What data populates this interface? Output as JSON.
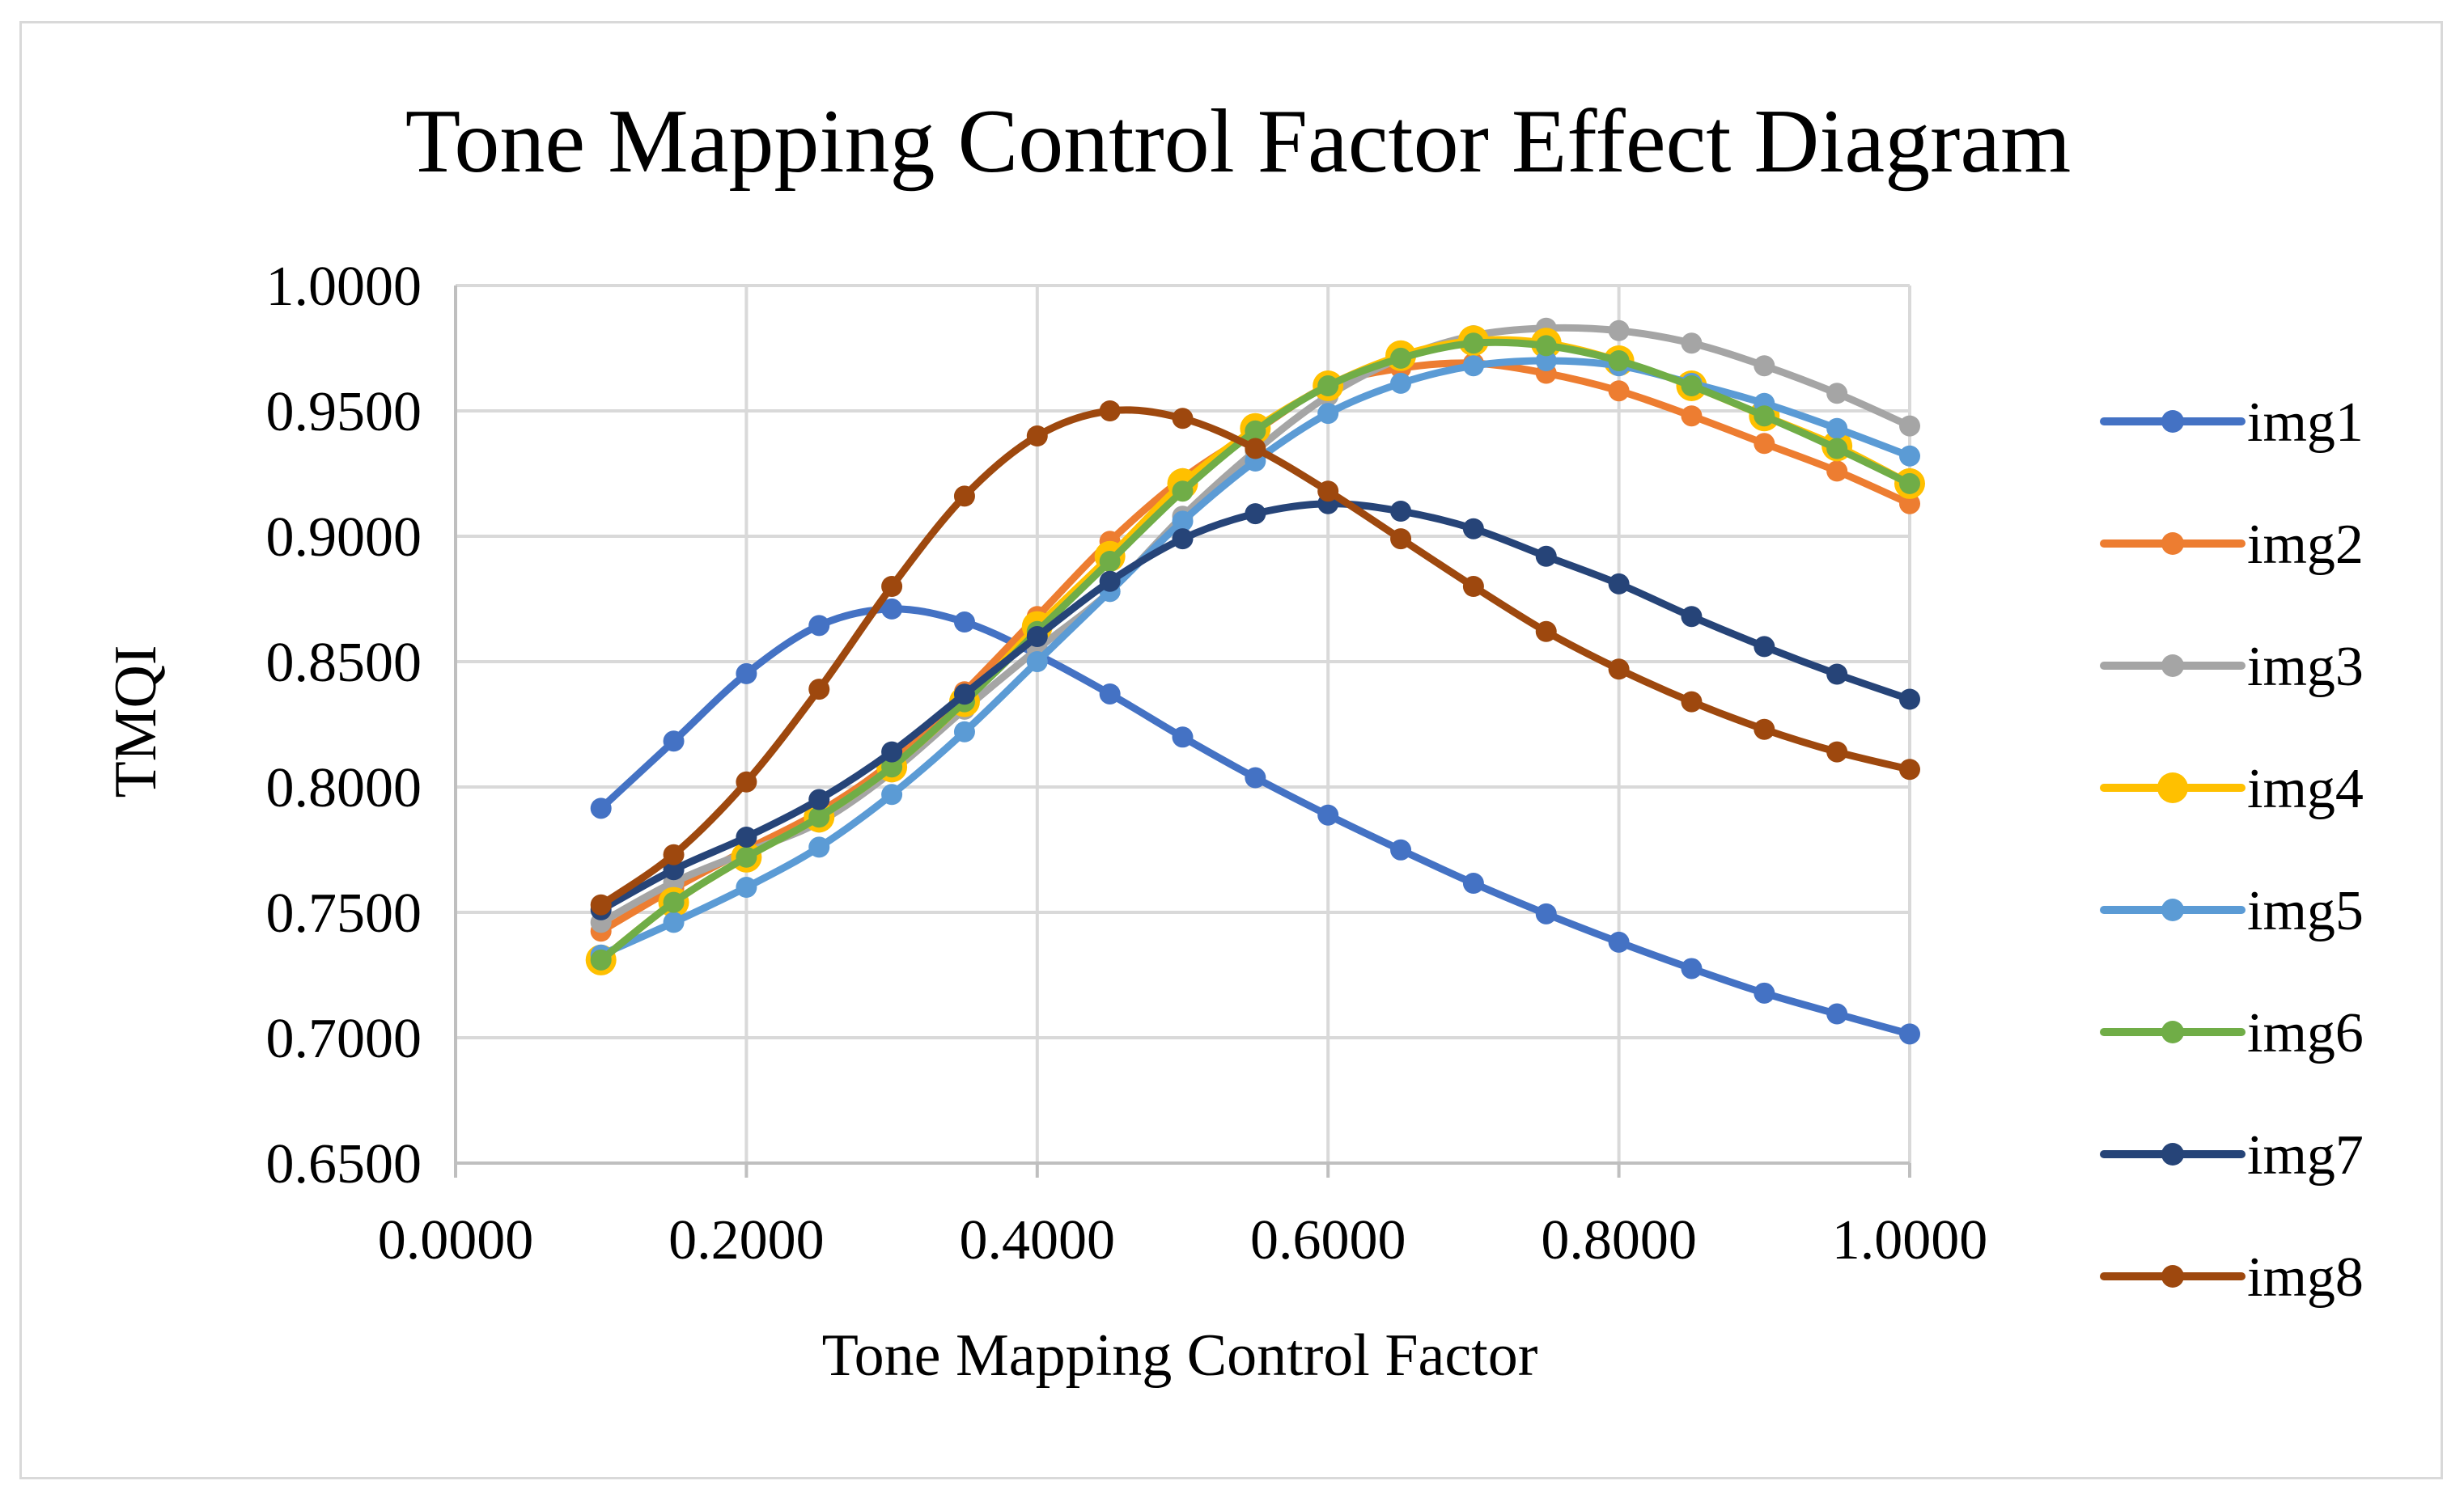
{
  "chart_data": {
    "type": "line",
    "title": "Tone Mapping Control Factor Effect Diagram",
    "xlabel": "Tone Mapping Control Factor",
    "ylabel": "TMQI",
    "xlim": [
      0,
      1
    ],
    "ylim": [
      0.65,
      1.0
    ],
    "x_ticks": [
      "0.0000",
      "0.2000",
      "0.4000",
      "0.6000",
      "0.8000",
      "1.0000"
    ],
    "y_ticks": [
      "1.0000",
      "0.9500",
      "0.9000",
      "0.8500",
      "0.8000",
      "0.7500",
      "0.7000",
      "0.6500"
    ],
    "grid": true,
    "legend_position": "right",
    "x": [
      0.1,
      0.15,
      0.2,
      0.25,
      0.3,
      0.35,
      0.4,
      0.45,
      0.5,
      0.55,
      0.6,
      0.65,
      0.7,
      0.75,
      0.8,
      0.85,
      0.9,
      0.95,
      1.0
    ],
    "series": [
      {
        "name": "img1",
        "color": "#4472c4",
        "values": [
          0.7915,
          0.8183,
          0.8452,
          0.8644,
          0.871,
          0.8658,
          0.8528,
          0.8371,
          0.8199,
          0.8037,
          0.7888,
          0.7749,
          0.7616,
          0.7494,
          0.7381,
          0.7276,
          0.7178,
          0.7095,
          0.7015
        ]
      },
      {
        "name": "img2",
        "color": "#ed7d31",
        "values": [
          0.7425,
          0.7595,
          0.775,
          0.79,
          0.81,
          0.838,
          0.868,
          0.898,
          0.923,
          0.942,
          0.96,
          0.967,
          0.969,
          0.965,
          0.958,
          0.948,
          0.937,
          0.926,
          0.913
        ]
      },
      {
        "name": "img3",
        "color": "#a5a5a5",
        "values": [
          0.746,
          0.762,
          0.774,
          0.786,
          0.806,
          0.831,
          0.855,
          0.878,
          0.908,
          0.934,
          0.956,
          0.971,
          0.98,
          0.983,
          0.982,
          0.977,
          0.968,
          0.957,
          0.944
        ]
      },
      {
        "name": "img4",
        "color": "#ffc000",
        "values": [
          0.731,
          0.754,
          0.772,
          0.788,
          0.808,
          0.834,
          0.864,
          0.892,
          0.921,
          0.943,
          0.96,
          0.972,
          0.978,
          0.977,
          0.97,
          0.96,
          0.948,
          0.936,
          0.921
        ]
      },
      {
        "name": "img5",
        "color": "#5b9bd5",
        "values": [
          0.733,
          0.746,
          0.76,
          0.776,
          0.797,
          0.822,
          0.85,
          0.878,
          0.906,
          0.93,
          0.949,
          0.961,
          0.968,
          0.97,
          0.968,
          0.961,
          0.953,
          0.943,
          0.932
        ]
      },
      {
        "name": "img6",
        "color": "#70ad47",
        "values": [
          0.731,
          0.754,
          0.772,
          0.788,
          0.808,
          0.834,
          0.862,
          0.89,
          0.918,
          0.942,
          0.96,
          0.971,
          0.977,
          0.976,
          0.97,
          0.96,
          0.948,
          0.935,
          0.921
        ]
      },
      {
        "name": "img7",
        "color": "#264478",
        "values": [
          0.751,
          0.767,
          0.78,
          0.795,
          0.814,
          0.837,
          0.86,
          0.882,
          0.899,
          0.909,
          0.913,
          0.91,
          0.903,
          0.892,
          0.881,
          0.868,
          0.856,
          0.845,
          0.835
        ]
      },
      {
        "name": "img8",
        "color": "#9e480e",
        "values": [
          0.753,
          0.773,
          0.802,
          0.839,
          0.88,
          0.916,
          0.94,
          0.95,
          0.947,
          0.935,
          0.918,
          0.899,
          0.88,
          0.862,
          0.847,
          0.834,
          0.823,
          0.814,
          0.807
        ]
      }
    ]
  }
}
